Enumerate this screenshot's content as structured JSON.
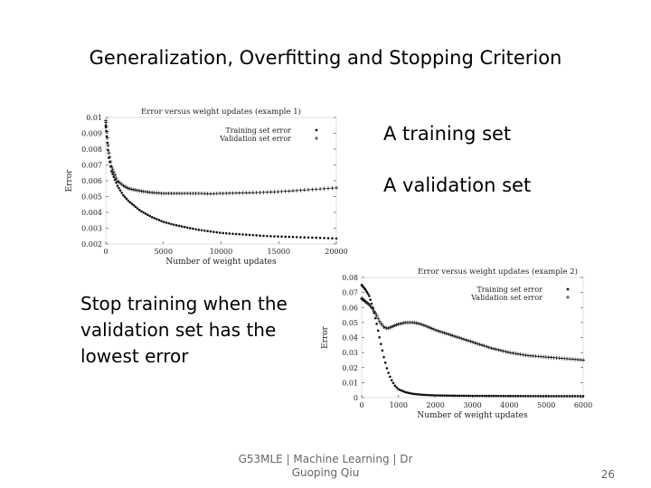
{
  "slide": {
    "title": "Generalization, Overfitting and Stopping Criterion",
    "bullets": [
      "A training set",
      "A validation set"
    ],
    "note": "Stop training when the validation set has the lowest error",
    "footer": "G53MLE | Machine Learning | Dr Guoping Qiu",
    "page_number": "26"
  },
  "chart_data": [
    {
      "type": "scatter",
      "title": "Error versus weight updates (example 1)",
      "xlabel": "Number of weight updates",
      "ylabel": "Error",
      "xlim": [
        0,
        20000
      ],
      "ylim": [
        0.002,
        0.01
      ],
      "x_ticks": [
        "0",
        "5000",
        "10000",
        "15000",
        "20000"
      ],
      "y_ticks": [
        "0.002",
        "0.003",
        "0.004",
        "0.005",
        "0.006",
        "0.007",
        "0.008",
        "0.009",
        "0.01"
      ],
      "legend_position": "top-right",
      "series": [
        {
          "name": "Training set error",
          "marker": "dot",
          "x": [
            0,
            250,
            500,
            1000,
            1500,
            2000,
            3000,
            4000,
            5000,
            6000,
            8000,
            10000,
            12000,
            14000,
            16000,
            18000,
            20000
          ],
          "y": [
            0.0095,
            0.0075,
            0.0066,
            0.0057,
            0.0051,
            0.0047,
            0.0041,
            0.0037,
            0.0034,
            0.0032,
            0.0029,
            0.0027,
            0.0026,
            0.0025,
            0.00245,
            0.0024,
            0.00235
          ]
        },
        {
          "name": "Validation set error",
          "marker": "plus",
          "x": [
            0,
            250,
            500,
            1000,
            1500,
            2000,
            3000,
            4000,
            5000,
            6000,
            7000,
            8000,
            9000,
            10000,
            12000,
            14000,
            16000,
            18000,
            20000
          ],
          "y": [
            0.0098,
            0.0078,
            0.0069,
            0.006,
            0.0057,
            0.0055,
            0.00535,
            0.00525,
            0.0052,
            0.0052,
            0.0052,
            0.0052,
            0.00518,
            0.0052,
            0.00523,
            0.00527,
            0.00535,
            0.00545,
            0.00555
          ]
        }
      ]
    },
    {
      "type": "scatter",
      "title": "Error versus weight updates (example 2)",
      "xlabel": "Number of weight updates",
      "ylabel": "Error",
      "xlim": [
        0,
        6000
      ],
      "ylim": [
        0,
        0.08
      ],
      "x_ticks": [
        "0",
        "1000",
        "2000",
        "3000",
        "4000",
        "5000",
        "6000"
      ],
      "y_ticks": [
        "0",
        "0.01",
        "0.02",
        "0.03",
        "0.04",
        "0.05",
        "0.06",
        "0.07",
        "0.08"
      ],
      "legend_position": "top-right",
      "series": [
        {
          "name": "Training set error",
          "marker": "dot",
          "x": [
            0,
            100,
            200,
            300,
            400,
            500,
            600,
            700,
            800,
            900,
            1000,
            1200,
            1400,
            1600,
            1800,
            2000,
            2500,
            3000,
            4000,
            5000,
            6000
          ],
          "y": [
            0.075,
            0.072,
            0.068,
            0.06,
            0.05,
            0.038,
            0.027,
            0.018,
            0.012,
            0.008,
            0.0055,
            0.0035,
            0.0025,
            0.002,
            0.0017,
            0.0015,
            0.0013,
            0.0012,
            0.0011,
            0.001,
            0.001
          ]
        },
        {
          "name": "Validation set error",
          "marker": "plus",
          "x": [
            0,
            100,
            200,
            300,
            400,
            500,
            600,
            700,
            800,
            900,
            1000,
            1200,
            1400,
            1600,
            1800,
            2000,
            2500,
            3000,
            3500,
            4000,
            4500,
            5000,
            5500,
            6000
          ],
          "y": [
            0.066,
            0.064,
            0.062,
            0.059,
            0.055,
            0.05,
            0.047,
            0.046,
            0.047,
            0.048,
            0.049,
            0.05,
            0.05,
            0.049,
            0.047,
            0.045,
            0.041,
            0.037,
            0.033,
            0.03,
            0.028,
            0.027,
            0.026,
            0.025
          ]
        }
      ]
    }
  ]
}
